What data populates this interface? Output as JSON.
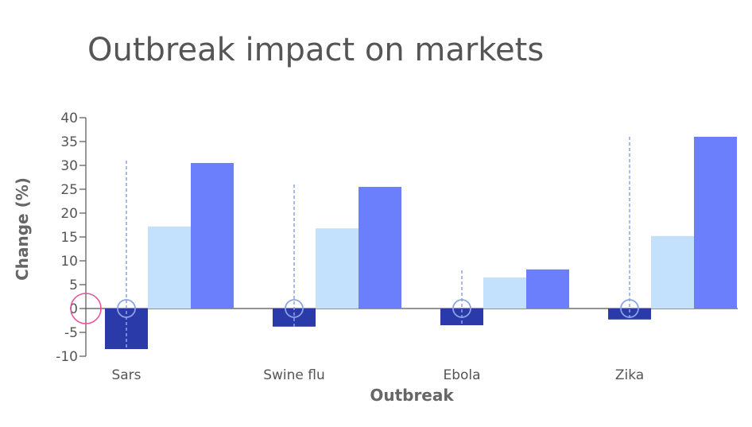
{
  "chart_data": {
    "type": "bar",
    "title": "Outbreak impact on markets",
    "xlabel": "Outbreak",
    "ylabel": "Change (%)",
    "ylim": [
      -10,
      40
    ],
    "yticks": [
      -10,
      -5,
      0,
      5,
      10,
      15,
      20,
      25,
      30,
      35,
      40
    ],
    "grid": false,
    "categories": [
      "Sars",
      "Swine flu",
      "Ebola",
      "Zika"
    ],
    "series": [
      {
        "values": [
          -8.5,
          -3.8,
          -3.5,
          -2.3
        ],
        "color": "#2a3aa8"
      },
      {
        "values": [
          17.2,
          16.8,
          6.5,
          15.2
        ],
        "color": "#c3e0fc"
      },
      {
        "values": [
          30.5,
          25.5,
          8.2,
          36.0
        ],
        "color": "#6b7ffc"
      }
    ],
    "range_markers": {
      "values": [
        0,
        0,
        0,
        0
      ],
      "upper": [
        31,
        26,
        8,
        36
      ],
      "lower": [
        -8.5,
        -3.8,
        -3.5,
        -2.3
      ],
      "color": "#8aa4e8"
    },
    "origin_marker_color": "#e84f9c"
  }
}
